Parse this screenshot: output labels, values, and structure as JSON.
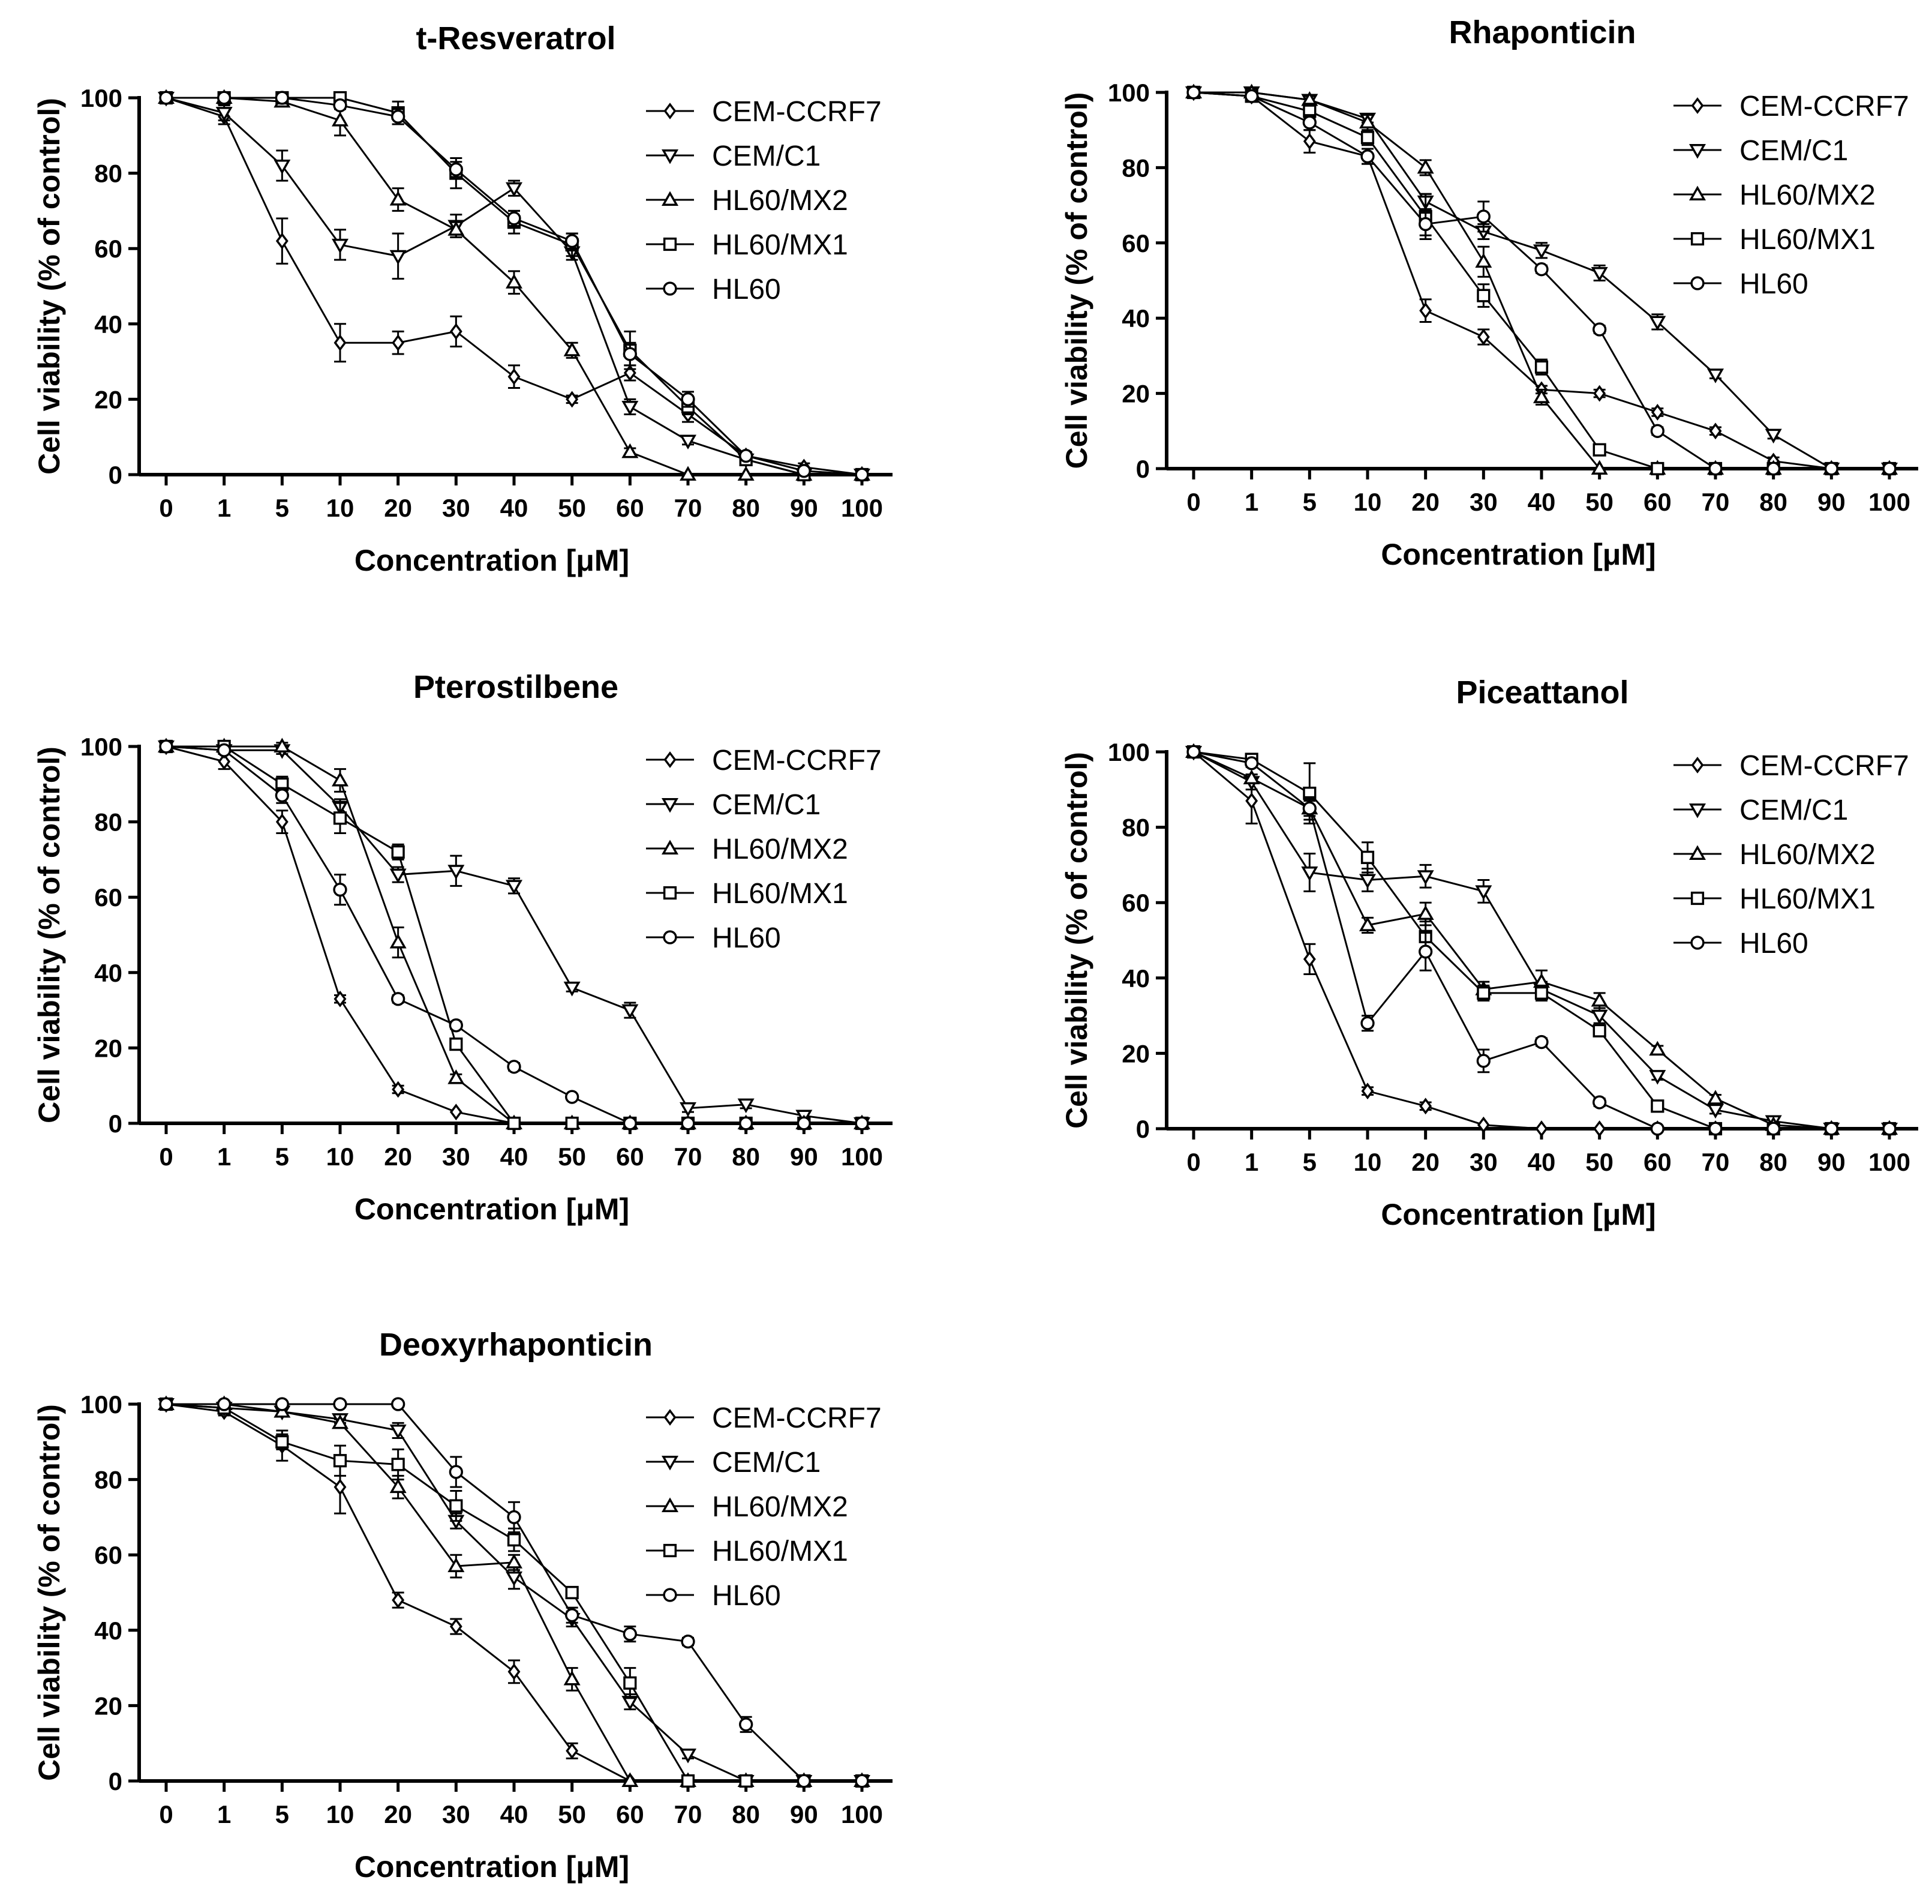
{
  "figure": {
    "series_names": [
      "CEM-CCRF7",
      "CEM/C1",
      "HL60/MX2",
      "HL60/MX1",
      "HL60"
    ],
    "markers": [
      "diamond",
      "triangle-down",
      "triangle-up",
      "square",
      "circle"
    ],
    "line_color": "#000000",
    "background": "#ffffff"
  },
  "chart_data": [
    {
      "type": "line",
      "title": "t-Resveratrol",
      "xlabel": "Concentration [μM]",
      "ylabel": "Cell viability (% of control)",
      "categories": [
        "0",
        "1",
        "5",
        "10",
        "20",
        "30",
        "40",
        "50",
        "60",
        "70",
        "80",
        "90",
        "100"
      ],
      "ylim": [
        0,
        100
      ],
      "yticks": [
        0,
        20,
        40,
        60,
        80,
        100
      ],
      "legend": "top-right",
      "series": [
        {
          "name": "CEM-CCRF7",
          "values": [
            100,
            95,
            62,
            35,
            35,
            38,
            26,
            20,
            27,
            16,
            5,
            2,
            0
          ],
          "errors": [
            0,
            2,
            6,
            5,
            3,
            4,
            3,
            1,
            2,
            2,
            1,
            1,
            0
          ]
        },
        {
          "name": "CEM/C1",
          "values": [
            100,
            96,
            82,
            61,
            58,
            66,
            76,
            59,
            18,
            9,
            4,
            0,
            0
          ],
          "errors": [
            0,
            2,
            4,
            4,
            6,
            3,
            2,
            2,
            2,
            1,
            1,
            0,
            0
          ]
        },
        {
          "name": "HL60/MX2",
          "values": [
            100,
            100,
            99,
            94,
            73,
            65,
            51,
            33,
            6,
            0,
            0,
            0,
            0
          ],
          "errors": [
            0,
            0,
            1,
            4,
            3,
            2,
            3,
            2,
            1,
            0,
            0,
            0,
            0
          ]
        },
        {
          "name": "HL60/MX1",
          "values": [
            100,
            100,
            100,
            100,
            96,
            80,
            67,
            61,
            33,
            18,
            4,
            0,
            0
          ],
          "errors": [
            0,
            0,
            0,
            1,
            3,
            4,
            3,
            3,
            5,
            2,
            1,
            0,
            0
          ]
        },
        {
          "name": "HL60",
          "values": [
            100,
            100,
            100,
            98,
            95,
            81,
            68,
            62,
            32,
            20,
            5,
            1,
            0
          ],
          "errors": [
            0,
            0,
            0,
            1,
            2,
            2,
            2,
            2,
            3,
            2,
            1,
            0,
            0
          ]
        }
      ]
    },
    {
      "type": "line",
      "title": "Rhaponticin",
      "xlabel": "Concentration [μM]",
      "ylabel": "Cell viability (% of control)",
      "categories": [
        "0",
        "1",
        "5",
        "10",
        "20",
        "30",
        "40",
        "50",
        "60",
        "70",
        "80",
        "90",
        "100"
      ],
      "ylim": [
        0,
        100
      ],
      "yticks": [
        0,
        20,
        40,
        60,
        80,
        100
      ],
      "legend": "top-right",
      "series": [
        {
          "name": "CEM-CCRF7",
          "values": [
            100,
            99,
            87,
            83,
            42,
            35,
            21,
            20,
            15,
            10,
            2,
            0,
            0
          ],
          "errors": [
            0,
            1,
            3,
            2,
            3,
            2,
            1,
            1,
            1,
            1,
            1,
            0,
            0
          ]
        },
        {
          "name": "CEM/C1",
          "values": [
            100,
            100,
            98,
            93,
            71,
            63,
            58,
            52,
            39,
            25,
            9,
            0,
            0
          ],
          "errors": [
            0,
            1,
            1,
            1,
            2,
            2,
            2,
            2,
            2,
            1,
            1,
            0,
            0
          ]
        },
        {
          "name": "HL60/MX2",
          "values": [
            100,
            100,
            98,
            92,
            80,
            55,
            19,
            0,
            0,
            0,
            0,
            0,
            0
          ],
          "errors": [
            0,
            1,
            1,
            2,
            2,
            4,
            2,
            0,
            0,
            0,
            0,
            0,
            0
          ]
        },
        {
          "name": "HL60/MX1",
          "values": [
            100,
            99,
            95,
            88,
            67,
            46,
            27,
            5,
            0,
            0,
            0,
            0,
            0
          ],
          "errors": [
            0,
            1,
            2,
            2,
            6,
            3,
            2,
            1,
            0,
            0,
            0,
            0,
            0
          ]
        },
        {
          "name": "HL60",
          "values": [
            100,
            99,
            92,
            83,
            65,
            67,
            53,
            37,
            10,
            0,
            0,
            0,
            0
          ],
          "errors": [
            0,
            1,
            2,
            2,
            3,
            4,
            1,
            1,
            1,
            0,
            0,
            0,
            0
          ]
        }
      ]
    },
    {
      "type": "line",
      "title": "Pterostilbene",
      "xlabel": "Concentration [μM]",
      "ylabel": "Cell viability (% of control)",
      "categories": [
        "0",
        "1",
        "5",
        "10",
        "20",
        "30",
        "40",
        "50",
        "60",
        "70",
        "80",
        "90",
        "100"
      ],
      "ylim": [
        0,
        100
      ],
      "yticks": [
        0,
        20,
        40,
        60,
        80,
        100
      ],
      "legend": "top-right",
      "series": [
        {
          "name": "CEM-CCRF7",
          "values": [
            100,
            96,
            80,
            33,
            9,
            3,
            0,
            0,
            0,
            0,
            0,
            0,
            0
          ],
          "errors": [
            0,
            2,
            3,
            1,
            1,
            0,
            0,
            0,
            0,
            0,
            0,
            0,
            0
          ]
        },
        {
          "name": "CEM/C1",
          "values": [
            100,
            99,
            99,
            84,
            66,
            67,
            63,
            36,
            30,
            4,
            5,
            2,
            0
          ],
          "errors": [
            0,
            1,
            1,
            2,
            2,
            4,
            2,
            1,
            2,
            1,
            1,
            0,
            0
          ]
        },
        {
          "name": "HL60/MX2",
          "values": [
            100,
            100,
            100,
            91,
            48,
            12,
            0,
            0,
            0,
            0,
            0,
            0,
            0
          ],
          "errors": [
            0,
            0,
            1,
            3,
            4,
            1,
            0,
            0,
            0,
            0,
            0,
            0,
            0
          ]
        },
        {
          "name": "HL60/MX1",
          "values": [
            100,
            100,
            90,
            81,
            72,
            21,
            0,
            0,
            0,
            0,
            0,
            0,
            0
          ],
          "errors": [
            0,
            1,
            2,
            4,
            2,
            1,
            0,
            0,
            0,
            0,
            0,
            0,
            0
          ]
        },
        {
          "name": "HL60",
          "values": [
            100,
            99,
            87,
            62,
            33,
            26,
            15,
            7,
            0,
            0,
            0,
            0,
            0
          ],
          "errors": [
            0,
            1,
            2,
            4,
            1,
            1,
            1,
            0,
            0,
            0,
            0,
            0,
            0
          ]
        }
      ]
    },
    {
      "type": "line",
      "title": "Piceattanol",
      "xlabel": "Concentration [μM]",
      "ylabel": "Cell viability (% of control)",
      "categories": [
        "0",
        "1",
        "5",
        "10",
        "20",
        "30",
        "40",
        "50",
        "60",
        "70",
        "80",
        "90",
        "100"
      ],
      "ylim": [
        0,
        100
      ],
      "yticks": [
        0,
        20,
        40,
        60,
        80,
        100
      ],
      "legend": "top-right",
      "series": [
        {
          "name": "CEM-CCRF7",
          "values": [
            100,
            87,
            45,
            10,
            6,
            1,
            0,
            0,
            0,
            0,
            0,
            0,
            0
          ],
          "errors": [
            0,
            6,
            4,
            1,
            1,
            0,
            0,
            0,
            0,
            0,
            0,
            0,
            0
          ]
        },
        {
          "name": "CEM/C1",
          "values": [
            100,
            92,
            68,
            66,
            67,
            63,
            37,
            30,
            14,
            5,
            2,
            0,
            0
          ],
          "errors": [
            0,
            2,
            5,
            3,
            3,
            3,
            2,
            2,
            1,
            1,
            0,
            0,
            0
          ]
        },
        {
          "name": "HL60/MX2",
          "values": [
            100,
            93,
            85,
            54,
            57,
            37,
            39,
            34,
            21,
            8,
            1,
            0,
            0
          ],
          "errors": [
            0,
            1,
            2,
            2,
            3,
            2,
            3,
            2,
            1,
            1,
            0,
            0,
            0
          ]
        },
        {
          "name": "HL60/MX1",
          "values": [
            100,
            98,
            89,
            72,
            51,
            36,
            36,
            26,
            6,
            0,
            0,
            0,
            0
          ],
          "errors": [
            0,
            1,
            8,
            4,
            4,
            2,
            2,
            1,
            1,
            0,
            0,
            0,
            0
          ]
        },
        {
          "name": "HL60",
          "values": [
            100,
            97,
            85,
            28,
            47,
            18,
            23,
            7,
            0,
            0,
            0,
            0,
            0
          ],
          "errors": [
            0,
            1,
            3,
            2,
            5,
            3,
            1,
            1,
            0,
            0,
            0,
            0,
            0
          ]
        }
      ]
    },
    {
      "type": "line",
      "title": "Deoxyrhaponticin",
      "xlabel": "Concentration [μM]",
      "ylabel": "Cell viability (% of control)",
      "categories": [
        "0",
        "1",
        "5",
        "10",
        "20",
        "30",
        "40",
        "50",
        "60",
        "70",
        "80",
        "90",
        "100"
      ],
      "ylim": [
        0,
        100
      ],
      "yticks": [
        0,
        20,
        40,
        60,
        80,
        100
      ],
      "legend": "top-right",
      "series": [
        {
          "name": "CEM-CCRF7",
          "values": [
            100,
            98,
            89,
            78,
            48,
            41,
            29,
            8,
            0,
            0,
            0,
            0,
            0
          ],
          "errors": [
            0,
            1,
            4,
            7,
            2,
            2,
            3,
            2,
            0,
            0,
            0,
            0,
            0
          ]
        },
        {
          "name": "CEM/C1",
          "values": [
            100,
            99,
            98,
            96,
            93,
            69,
            54,
            43,
            21,
            7,
            0,
            0,
            0
          ],
          "errors": [
            0,
            1,
            1,
            1,
            2,
            2,
            3,
            2,
            2,
            1,
            0,
            0,
            0
          ]
        },
        {
          "name": "HL60/MX2",
          "values": [
            100,
            100,
            98,
            95,
            78,
            57,
            58,
            27,
            0,
            0,
            0,
            0,
            0
          ],
          "errors": [
            0,
            0,
            1,
            1,
            3,
            3,
            2,
            3,
            0,
            0,
            0,
            0,
            0
          ]
        },
        {
          "name": "HL60/MX1",
          "values": [
            100,
            99,
            90,
            85,
            84,
            73,
            64,
            50,
            26,
            0,
            0,
            0,
            0
          ],
          "errors": [
            0,
            1,
            2,
            4,
            4,
            4,
            3,
            1,
            4,
            0,
            0,
            0,
            0
          ]
        },
        {
          "name": "HL60",
          "values": [
            100,
            100,
            100,
            100,
            100,
            82,
            70,
            44,
            39,
            37,
            15,
            0,
            0
          ],
          "errors": [
            0,
            0,
            0,
            0,
            0,
            4,
            4,
            2,
            2,
            1,
            2,
            0,
            0
          ]
        }
      ]
    }
  ]
}
